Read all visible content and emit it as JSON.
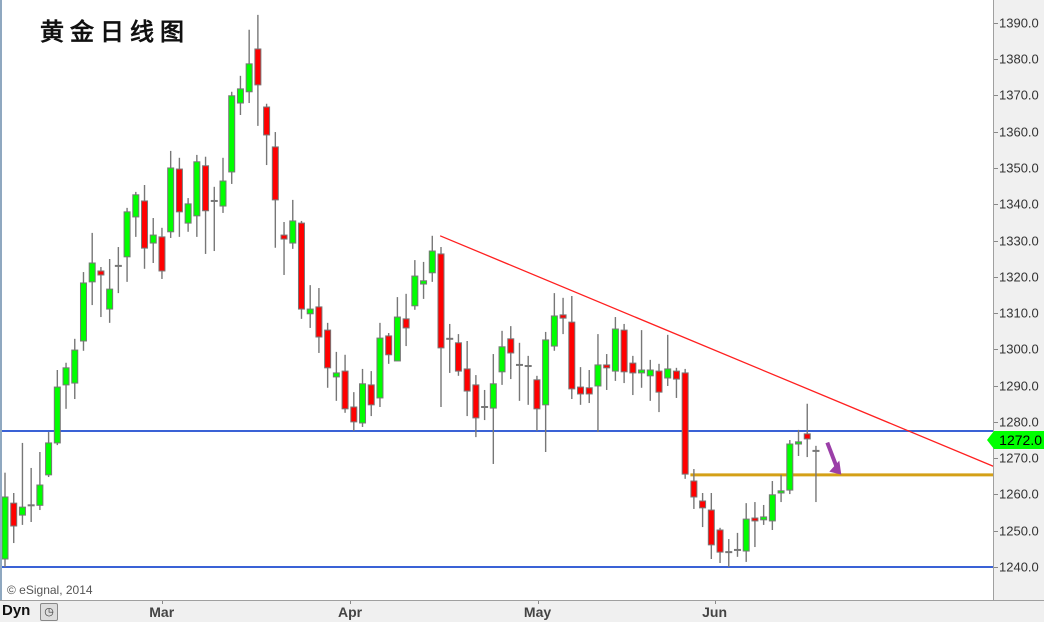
{
  "title": "黄金日线图",
  "copyright": "© eSignal, 2014",
  "bottom_bar": {
    "mode_label": "Dyn",
    "lock_icon": "lock-clock-icon"
  },
  "last_price": "1272.0",
  "colors": {
    "up": "#00ff00",
    "down": "#ff0000",
    "wick": "#777777",
    "support": "#3a62d6",
    "gold_line": "#d4a017",
    "trendline": "#ff2020",
    "arrow": "#9b3fa8"
  },
  "chart_data": {
    "type": "candlestick",
    "title": "黄金日线图",
    "ylim": [
      1230.9,
      1396.3
    ],
    "y_ticks": [
      "1240.0",
      "1250.0",
      "1260.0",
      "1270.0",
      "1280.0",
      "1290.0",
      "1300.0",
      "1310.0",
      "1320.0",
      "1330.0",
      "1340.0",
      "1350.0",
      "1360.0",
      "1370.0",
      "1380.0",
      "1390.0"
    ],
    "x_labels": [
      {
        "label": "Mar",
        "index": 18.2
      },
      {
        "label": "Apr",
        "index": 39.8
      },
      {
        "label": "May",
        "index": 61.3
      },
      {
        "label": "Jun",
        "index": 81.6
      }
    ],
    "candle_fields": [
      "open",
      "high",
      "low",
      "close"
    ],
    "candles": [
      [
        1242.2,
        1266.0,
        1240.0,
        1259.3
      ],
      [
        1257.6,
        1260.4,
        1246.6,
        1251.3
      ],
      [
        1254.3,
        1274.2,
        1251.6,
        1256.5
      ],
      [
        1257.0,
        1267.3,
        1252.4,
        1257.0
      ],
      [
        1257.0,
        1271.7,
        1255.7,
        1262.6
      ],
      [
        1265.4,
        1277.2,
        1264.8,
        1274.2
      ],
      [
        1274.2,
        1294.3,
        1273.6,
        1289.6
      ],
      [
        1290.2,
        1296.3,
        1283.6,
        1294.9
      ],
      [
        1290.7,
        1302.9,
        1286.3,
        1299.8
      ],
      [
        1302.3,
        1321.3,
        1299.6,
        1318.3
      ],
      [
        1318.6,
        1332.1,
        1312.2,
        1323.8
      ],
      [
        1321.6,
        1322.7,
        1308.9,
        1320.5
      ],
      [
        1311.1,
        1324.9,
        1307.3,
        1316.6
      ],
      [
        1323.0,
        1328.2,
        1315.5,
        1323.0
      ],
      [
        1325.5,
        1339.0,
        1318.6,
        1337.9
      ],
      [
        1336.5,
        1343.4,
        1331.0,
        1342.6
      ],
      [
        1340.9,
        1345.3,
        1322.2,
        1327.9
      ],
      [
        1329.3,
        1336.2,
        1323.8,
        1331.5
      ],
      [
        1331.0,
        1333.5,
        1319.4,
        1321.6
      ],
      [
        1332.4,
        1354.7,
        1330.7,
        1350.0
      ],
      [
        1349.7,
        1352.8,
        1331.0,
        1337.9
      ],
      [
        1334.8,
        1341.7,
        1332.4,
        1340.1
      ],
      [
        1336.8,
        1353.6,
        1331.0,
        1351.7
      ],
      [
        1350.6,
        1353.1,
        1326.3,
        1338.2
      ],
      [
        1340.9,
        1344.8,
        1327.1,
        1340.9
      ],
      [
        1339.5,
        1352.8,
        1337.6,
        1346.4
      ],
      [
        1348.9,
        1371.0,
        1345.6,
        1369.9
      ],
      [
        1367.9,
        1375.4,
        1364.6,
        1371.8
      ],
      [
        1371.0,
        1388.1,
        1367.9,
        1378.7
      ],
      [
        1382.8,
        1392.2,
        1361.6,
        1372.9
      ],
      [
        1366.8,
        1367.7,
        1350.8,
        1359.1
      ],
      [
        1355.8,
        1359.9,
        1328.0,
        1341.2
      ],
      [
        1331.5,
        1335.1,
        1320.5,
        1330.4
      ],
      [
        1329.3,
        1341.2,
        1327.7,
        1335.4
      ],
      [
        1334.8,
        1335.4,
        1308.4,
        1311.1
      ],
      [
        1309.8,
        1317.7,
        1305.9,
        1311.1
      ],
      [
        1311.7,
        1316.9,
        1299.0,
        1303.4
      ],
      [
        1305.3,
        1307.3,
        1289.4,
        1294.9
      ],
      [
        1292.4,
        1299.3,
        1285.8,
        1293.5
      ],
      [
        1294.0,
        1298.5,
        1282.5,
        1283.6
      ],
      [
        1284.1,
        1288.2,
        1277.5,
        1280.0
      ],
      [
        1279.7,
        1294.6,
        1278.6,
        1290.5
      ],
      [
        1290.2,
        1294.0,
        1281.6,
        1284.7
      ],
      [
        1286.6,
        1307.3,
        1284.1,
        1303.1
      ],
      [
        1303.7,
        1304.5,
        1296.0,
        1298.5
      ],
      [
        1296.8,
        1314.4,
        1296.8,
        1308.9
      ],
      [
        1308.4,
        1315.3,
        1300.9,
        1305.9
      ],
      [
        1312.0,
        1324.6,
        1310.9,
        1320.2
      ],
      [
        1318.0,
        1324.1,
        1313.9,
        1318.9
      ],
      [
        1321.1,
        1331.3,
        1318.6,
        1327.1
      ],
      [
        1326.3,
        1328.2,
        1284.1,
        1300.4
      ],
      [
        1302.9,
        1307.0,
        1293.5,
        1302.9
      ],
      [
        1301.8,
        1304.2,
        1292.7,
        1294.0
      ],
      [
        1294.6,
        1302.3,
        1281.6,
        1288.5
      ],
      [
        1290.2,
        1292.9,
        1275.8,
        1281.1
      ],
      [
        1284.1,
        1288.8,
        1280.5,
        1284.1
      ],
      [
        1283.8,
        1298.7,
        1268.4,
        1290.5
      ],
      [
        1293.8,
        1305.1,
        1290.2,
        1300.7
      ],
      [
        1302.9,
        1306.4,
        1291.8,
        1299.0
      ],
      [
        1295.7,
        1301.8,
        1285.8,
        1295.7
      ],
      [
        1295.4,
        1298.2,
        1284.7,
        1295.4
      ],
      [
        1291.6,
        1292.7,
        1277.5,
        1283.6
      ],
      [
        1284.7,
        1304.8,
        1271.7,
        1302.6
      ],
      [
        1300.9,
        1315.5,
        1299.6,
        1309.2
      ],
      [
        1309.5,
        1314.2,
        1304.2,
        1308.6
      ],
      [
        1307.5,
        1314.7,
        1286.3,
        1289.1
      ],
      [
        1289.6,
        1295.1,
        1284.7,
        1287.7
      ],
      [
        1289.4,
        1294.3,
        1285.2,
        1287.7
      ],
      [
        1289.9,
        1304.2,
        1277.2,
        1295.7
      ],
      [
        1295.7,
        1298.7,
        1288.8,
        1294.9
      ],
      [
        1294.0,
        1308.9,
        1291.3,
        1305.6
      ],
      [
        1305.3,
        1307.0,
        1290.7,
        1293.8
      ],
      [
        1296.2,
        1298.2,
        1287.4,
        1293.5
      ],
      [
        1293.5,
        1305.3,
        1289.4,
        1294.3
      ],
      [
        1292.7,
        1297.1,
        1285.8,
        1294.3
      ],
      [
        1294.0,
        1296.0,
        1282.7,
        1288.2
      ],
      [
        1292.1,
        1304.0,
        1289.9,
        1294.6
      ],
      [
        1294.0,
        1294.9,
        1286.6,
        1291.8
      ],
      [
        1293.5,
        1294.6,
        1264.3,
        1265.6
      ],
      [
        1263.7,
        1267.0,
        1256.0,
        1259.3
      ],
      [
        1258.2,
        1260.4,
        1251.0,
        1256.3
      ],
      [
        1255.7,
        1260.4,
        1242.2,
        1246.1
      ],
      [
        1250.2,
        1250.8,
        1241.1,
        1244.1
      ],
      [
        1244.1,
        1247.7,
        1240.0,
        1244.1
      ],
      [
        1244.4,
        1249.4,
        1242.8,
        1244.7
      ],
      [
        1244.4,
        1257.6,
        1241.4,
        1253.2
      ],
      [
        1253.5,
        1257.9,
        1245.5,
        1252.7
      ],
      [
        1253.0,
        1257.1,
        1251.6,
        1253.8
      ],
      [
        1252.7,
        1263.7,
        1250.2,
        1259.9
      ],
      [
        1260.4,
        1265.4,
        1257.9,
        1261.0
      ],
      [
        1261.2,
        1275.0,
        1260.1,
        1273.9
      ],
      [
        1273.9,
        1277.8,
        1270.6,
        1274.5
      ],
      [
        1276.7,
        1285.0,
        1270.3,
        1275.3
      ],
      [
        1272.0,
        1273.4,
        1257.9,
        1272.0
      ]
    ],
    "horizontal_lines": [
      {
        "name": "resistance",
        "price": 1277.5,
        "color": "#3a62d6",
        "from_index": -1
      },
      {
        "name": "support",
        "price": 1240.0,
        "color": "#3a62d6",
        "from_index": -1
      },
      {
        "name": "gold-level",
        "price": 1265.4,
        "color": "#d4a017",
        "from_index": 78.6
      }
    ],
    "trendline": {
      "start": {
        "index": 49.9,
        "price": 1331.3
      },
      "end": {
        "index": 113.5,
        "price": 1267.6
      }
    },
    "annotation_arrow": {
      "index": 94.3,
      "price_from": 1273.2,
      "price_to": 1266.0,
      "direction": "down-right"
    }
  }
}
